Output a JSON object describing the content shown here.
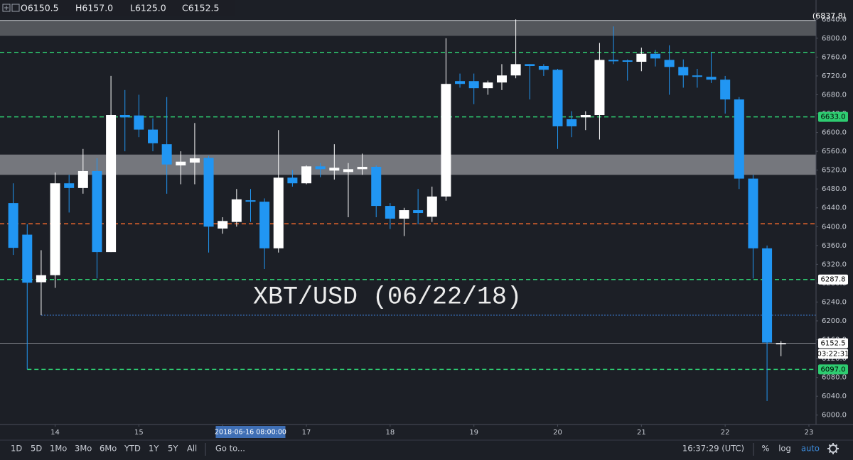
{
  "chart_data": {
    "type": "candlestick",
    "watermark": "XBT/USD (06/22/18)",
    "x": [
      "2018-06-13 12:00:00",
      "2018-06-13 16:00:00",
      "2018-06-13 20:00:00",
      "2018-06-14 00:00:00",
      "2018-06-14 04:00:00",
      "2018-06-14 08:00:00",
      "2018-06-14 12:00:00",
      "2018-06-14 16:00:00",
      "2018-06-14 20:00:00",
      "2018-06-15 00:00:00",
      "2018-06-15 04:00:00",
      "2018-06-15 08:00:00",
      "2018-06-15 12:00:00",
      "2018-06-15 16:00:00",
      "2018-06-15 20:00:00",
      "2018-06-16 00:00:00",
      "2018-06-16 04:00:00",
      "2018-06-16 08:00:00",
      "2018-06-16 12:00:00",
      "2018-06-16 16:00:00",
      "2018-06-16 20:00:00",
      "2018-06-17 00:00:00",
      "2018-06-17 04:00:00",
      "2018-06-17 08:00:00",
      "2018-06-17 12:00:00",
      "2018-06-17 16:00:00",
      "2018-06-17 20:00:00",
      "2018-06-18 00:00:00",
      "2018-06-18 04:00:00",
      "2018-06-18 08:00:00",
      "2018-06-18 12:00:00",
      "2018-06-18 16:00:00",
      "2018-06-18 20:00:00",
      "2018-06-19 00:00:00",
      "2018-06-19 04:00:00",
      "2018-06-19 08:00:00",
      "2018-06-19 12:00:00",
      "2018-06-19 16:00:00",
      "2018-06-19 20:00:00",
      "2018-06-20 00:00:00",
      "2018-06-20 04:00:00",
      "2018-06-20 08:00:00",
      "2018-06-20 12:00:00",
      "2018-06-20 16:00:00",
      "2018-06-20 20:00:00",
      "2018-06-21 00:00:00",
      "2018-06-21 04:00:00",
      "2018-06-21 08:00:00",
      "2018-06-21 12:00:00",
      "2018-06-21 16:00:00",
      "2018-06-21 20:00:00",
      "2018-06-22 00:00:00",
      "2018-06-22 04:00:00",
      "2018-06-22 08:00:00",
      "2018-06-22 12:00:00",
      "2018-06-22 16:00:00"
    ],
    "open": [
      6450,
      6383,
      6282,
      6297,
      6492,
      6482,
      6518,
      6346,
      6637,
      6636,
      6606,
      6575,
      6530,
      6536,
      6546,
      6396,
      6410,
      6456,
      6453,
      6354,
      6504,
      6492,
      6528,
      6519,
      6516,
      6522,
      6527,
      6444,
      6417,
      6435,
      6421,
      6464,
      6709,
      6709,
      6694,
      6706,
      6721,
      6745,
      6741,
      6733,
      6628,
      6632,
      6637,
      6754,
      6753,
      6750,
      6767,
      6754,
      6739,
      6721,
      6718,
      6712,
      6670,
      6502,
      6354,
      6150.5
    ],
    "high": [
      6492,
      6405,
      6350,
      6515,
      6510,
      6565,
      6545,
      6720,
      6690,
      6680,
      6630,
      6675,
      6560,
      6620,
      6550,
      6420,
      6480,
      6480,
      6460,
      6605,
      6520,
      6530,
      6535,
      6575,
      6535,
      6555,
      6530,
      6450,
      6440,
      6480,
      6485,
      6800,
      6725,
      6725,
      6710,
      6745,
      6840,
      6745,
      6745,
      6735,
      6645,
      6645,
      6790,
      6825,
      6755,
      6780,
      6775,
      6785,
      6755,
      6735,
      6770,
      6720,
      6675,
      6510,
      6360,
      6157.0
    ],
    "low": [
      6340,
      6097,
      6212,
      6270,
      6430,
      6470,
      6290,
      6346,
      6560,
      6590,
      6560,
      6470,
      6490,
      6490,
      6345,
      6385,
      6400,
      6410,
      6310,
      6345,
      6485,
      6490,
      6505,
      6500,
      6420,
      6510,
      6420,
      6395,
      6380,
      6405,
      6410,
      6455,
      6695,
      6660,
      6680,
      6690,
      6715,
      6670,
      6720,
      6565,
      6590,
      6605,
      6585,
      6745,
      6710,
      6730,
      6740,
      6680,
      6695,
      6695,
      6705,
      6640,
      6480,
      6290,
      6030,
      6125.0
    ],
    "close": [
      6355,
      6281,
      6297,
      6492,
      6482,
      6518,
      6346,
      6637,
      6632,
      6606,
      6577,
      6532,
      6538,
      6545,
      6400,
      6412,
      6458,
      6453,
      6354,
      6504,
      6492,
      6528,
      6522,
      6525,
      6522,
      6527,
      6444,
      6417,
      6435,
      6429,
      6464,
      6703,
      6703,
      6694,
      6706,
      6721,
      6745,
      6741,
      6733,
      6613,
      6613,
      6637,
      6754,
      6751,
      6750,
      6767,
      6757,
      6739,
      6721,
      6718,
      6712,
      6670,
      6502,
      6354,
      6154,
      6152.5
    ],
    "up_color": "#ffffff",
    "down_color": "#2196f3",
    "grid": false,
    "xlim": [
      "2018-06-13 08:00:00",
      "2018-06-23 00:00:00"
    ],
    "xticks": [
      {
        "value": "2018-06-14 00:00:00",
        "label": "14"
      },
      {
        "value": "2018-06-15 00:00:00",
        "label": "15"
      },
      {
        "value": "2018-06-16 00:00:00",
        "label": "16"
      },
      {
        "value": "2018-06-17 00:00:00",
        "label": "17"
      },
      {
        "value": "2018-06-18 00:00:00",
        "label": "18"
      },
      {
        "value": "2018-06-19 00:00:00",
        "label": "19"
      },
      {
        "value": "2018-06-20 00:00:00",
        "label": "20"
      },
      {
        "value": "2018-06-21 00:00:00",
        "label": "21"
      },
      {
        "value": "2018-06-22 00:00:00",
        "label": "22"
      },
      {
        "value": "2018-06-23 00:00:00",
        "label": "23"
      }
    ],
    "ylim": [
      5980,
      6854
    ],
    "yticks": [
      {
        "value": 6000,
        "label": "6000.0"
      },
      {
        "value": 6040,
        "label": "6040.0"
      },
      {
        "value": 6080,
        "label": "6080.0"
      },
      {
        "value": 6120,
        "label": "6120.0"
      },
      {
        "value": 6160,
        "label": "6160.0"
      },
      {
        "value": 6200,
        "label": "6200.0"
      },
      {
        "value": 6240,
        "label": "6240.0"
      },
      {
        "value": 6280,
        "label": "6280.0"
      },
      {
        "value": 6320,
        "label": "6320.0"
      },
      {
        "value": 6360,
        "label": "6360.0"
      },
      {
        "value": 6400,
        "label": "6400.0"
      },
      {
        "value": 6440,
        "label": "6440.0"
      },
      {
        "value": 6480,
        "label": "6480.0"
      },
      {
        "value": 6520,
        "label": "6520.0"
      },
      {
        "value": 6560,
        "label": "6560.0"
      },
      {
        "value": 6600,
        "label": "6600.0"
      },
      {
        "value": 6640,
        "label": "6640.0"
      },
      {
        "value": 6680,
        "label": "6680.0"
      },
      {
        "value": 6720,
        "label": "6720.0"
      },
      {
        "value": 6760,
        "label": "6760.0"
      },
      {
        "value": 6800,
        "label": "6800.0"
      },
      {
        "value": 6840,
        "label": "6840.0"
      }
    ],
    "zones": [
      {
        "from": 6805,
        "to": 6837.8,
        "label": "(6837.8)",
        "color": "rgba(150,152,158,0.45)"
      },
      {
        "from": 6510,
        "to": 6553,
        "color": "rgba(205,207,212,0.5)"
      }
    ],
    "levels": [
      {
        "value": 6770,
        "color": "#2ecc71",
        "style": "dashed"
      },
      {
        "value": 6633,
        "label": "6633.0",
        "color": "#2ecc71",
        "style": "dashed",
        "label_fill": "#2ecc71"
      },
      {
        "value": 6406,
        "color": "#f0682c",
        "style": "dashed"
      },
      {
        "value": 6287.8,
        "label": "6287.8",
        "color": "#2ecc71",
        "style": "dashed",
        "label_fill": "#ffffff"
      },
      {
        "value": 6212,
        "color": "#3d7fd9",
        "style": "dotted",
        "start": "2018-06-13 20:00:00"
      },
      {
        "value": 6097,
        "label": "6097.0",
        "color": "#2ecc71",
        "style": "dashed",
        "start": "2018-06-13 16:00:00",
        "label_fill": "#2ecc71"
      }
    ],
    "last": {
      "value": 6152.5,
      "label": "6152.5",
      "countdown": "03:22:31"
    },
    "crosshair": "2018-06-16 08:00:00"
  },
  "header": {
    "ohlc": [
      "O6150.5",
      "H6157.0",
      "L6125.0",
      "C6152.5"
    ]
  },
  "toolbar": {
    "ranges": [
      "1D",
      "5D",
      "1Mo",
      "3Mo",
      "6Mo",
      "YTD",
      "1Y",
      "5Y",
      "All"
    ],
    "goto": "Go to...",
    "time": "16:37:29 (UTC)",
    "options": [
      "%",
      "log",
      "auto"
    ]
  }
}
